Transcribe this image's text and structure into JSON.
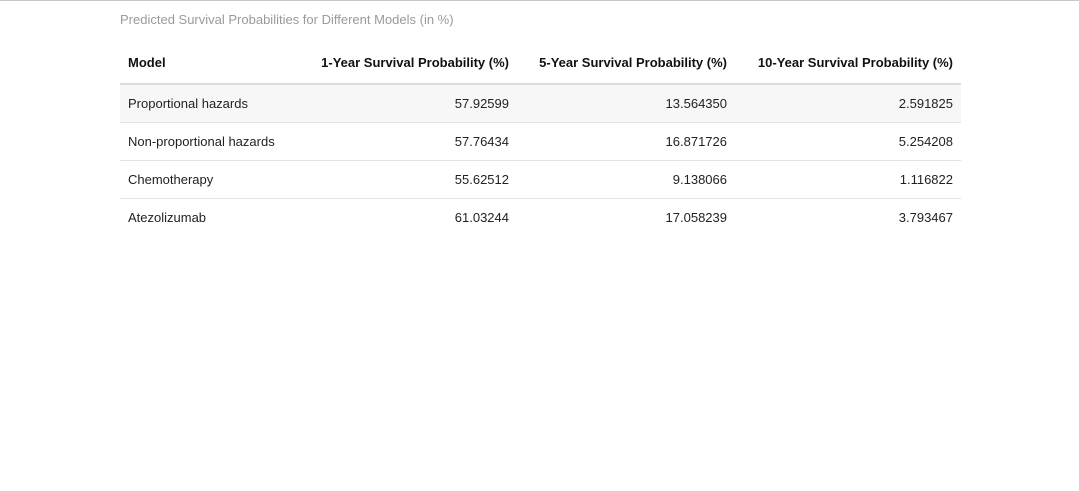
{
  "caption": "Predicted Survival Probabilities for Different Models (in %)",
  "table": {
    "headers": [
      "Model",
      "1-Year Survival Probability (%)",
      "5-Year Survival Probability (%)",
      "10-Year Survival Probability (%)"
    ],
    "rows": [
      [
        "Proportional hazards",
        "57.92599",
        "13.564350",
        "2.591825"
      ],
      [
        "Non-proportional hazards",
        "57.76434",
        "16.871726",
        "5.254208"
      ],
      [
        "Chemotherapy",
        "55.62512",
        "9.138066",
        "1.116822"
      ],
      [
        "Atezolizumab",
        "61.03244",
        "17.058239",
        "3.793467"
      ]
    ]
  },
  "colors": {
    "caption": "#9a9a9a",
    "striped_row": "#f7f7f7",
    "rule": "#dcdcdc"
  }
}
